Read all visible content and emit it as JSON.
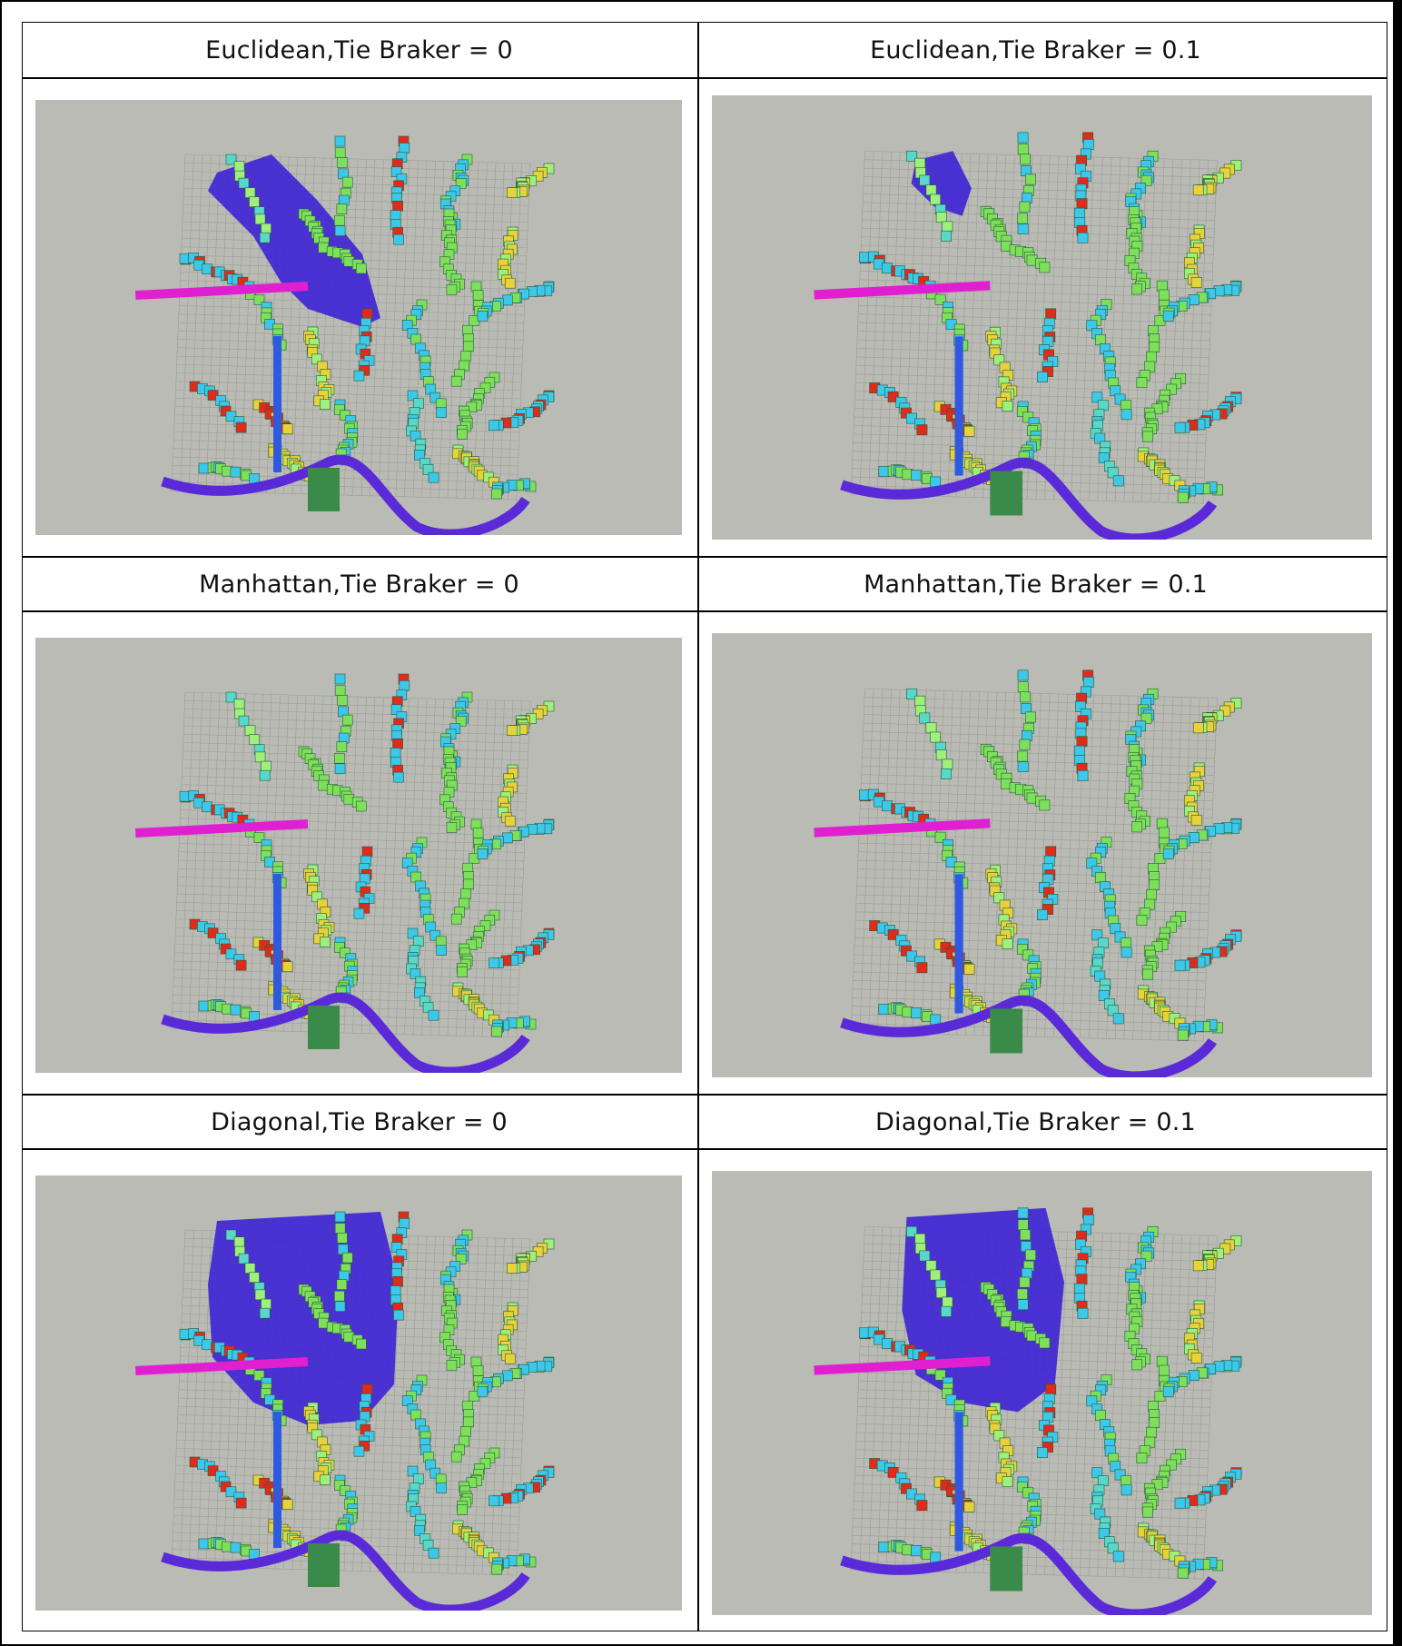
{
  "grid": {
    "cells": [
      {
        "title": "Euclidean,Tie Braker = 0",
        "blob": "euclid"
      },
      {
        "title": "Euclidean,Tie Braker = 0.1",
        "blob": "euclid-small"
      },
      {
        "title": "Manhattan,Tie Braker = 0",
        "blob": "none"
      },
      {
        "title": "Manhattan,Tie Braker = 0.1",
        "blob": "none"
      },
      {
        "title": "Diagonal,Tie Braker = 0",
        "blob": "diag"
      },
      {
        "title": "Diagonal,Tie Braker = 0.1",
        "blob": "diag-small"
      }
    ]
  },
  "colors": {
    "panel_bg": "#b9bbb4",
    "grid_line": "#8f918b",
    "explored_blue": "#3a1fd6",
    "path_magenta": "#e020d0",
    "path_purple": "#5a2ad8",
    "voxel_cyan": "#3cc8e8",
    "voxel_green": "#7ee05a",
    "voxel_red": "#e02a1a",
    "voxel_yellow": "#e8d23a"
  }
}
